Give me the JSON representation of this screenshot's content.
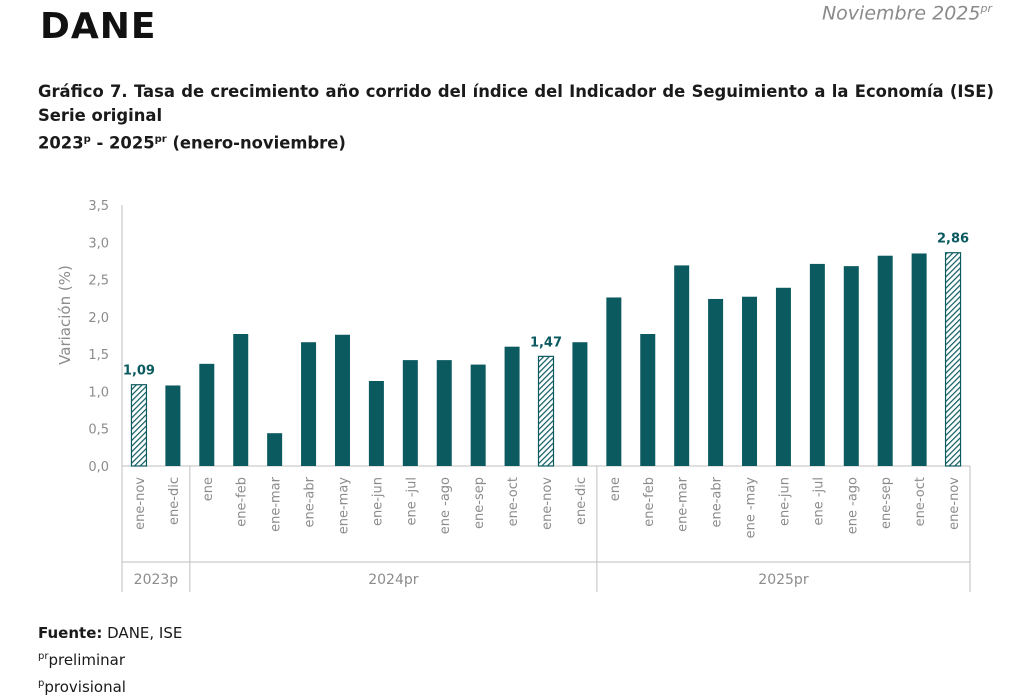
{
  "header": {
    "logo_text": "DANE",
    "period_text": "Noviembre 2025",
    "period_sup": "pr"
  },
  "title": {
    "line1": "Gráfico 7. Tasa de crecimiento año corrido del índice del Indicador de Seguimiento a la Economía (ISE) Serie original",
    "sub_a": "2023",
    "sub_a_sup": "p",
    "sub_mid": " - 2025",
    "sub_b_sup": "pr",
    "sub_end": " (enero-noviembre)"
  },
  "chart_data": {
    "type": "bar",
    "ylabel": "Variación (%)",
    "ylim": [
      0,
      3.5
    ],
    "yticks": [
      "0,0",
      "0,5",
      "1,0",
      "1,5",
      "2,0",
      "2,5",
      "3,0",
      "3,5"
    ],
    "grid": false,
    "categories": [
      "ene-nov",
      "ene-dic",
      "ene",
      "ene-feb",
      "ene-mar",
      "ene-abr",
      "ene-may",
      "ene-jun",
      "ene -jul",
      "ene -ago",
      "ene-sep",
      "ene-oct",
      "ene-nov",
      "ene-dic",
      "ene",
      "ene-feb",
      "ene-mar",
      "ene-abr",
      "ene -may",
      "ene-jun",
      "ene -jul",
      "ene -ago",
      "ene-sep",
      "ene-oct",
      "ene-nov"
    ],
    "values": [
      1.09,
      1.08,
      1.37,
      1.77,
      0.44,
      1.66,
      1.76,
      1.14,
      1.42,
      1.42,
      1.36,
      1.6,
      1.47,
      1.66,
      2.26,
      1.77,
      2.69,
      2.24,
      2.27,
      2.39,
      2.71,
      2.68,
      2.82,
      2.85,
      2.86
    ],
    "hatched": [
      true,
      false,
      false,
      false,
      false,
      false,
      false,
      false,
      false,
      false,
      false,
      false,
      true,
      false,
      false,
      false,
      false,
      false,
      false,
      false,
      false,
      false,
      false,
      false,
      true
    ],
    "data_labels": [
      {
        "index": 0,
        "text": "1,09"
      },
      {
        "index": 12,
        "text": "1,47"
      },
      {
        "index": 24,
        "text": "2,86"
      }
    ],
    "groups": [
      {
        "label": "2023p",
        "start": 0,
        "end": 1
      },
      {
        "label": "2024pr",
        "start": 2,
        "end": 13
      },
      {
        "label": "2025pr",
        "start": 14,
        "end": 24
      }
    ],
    "colors": {
      "bar": "#0b5a5f",
      "label": "#0b5a5f",
      "axis": "#bfbfbf",
      "tick_text": "#8c8c8c"
    }
  },
  "footer": {
    "source_label": "Fuente:",
    "source_text": " DANE, ISE",
    "note1_sup": "pr",
    "note1_text": "preliminar",
    "note2_sup": "p",
    "note2_text": "provisional"
  }
}
